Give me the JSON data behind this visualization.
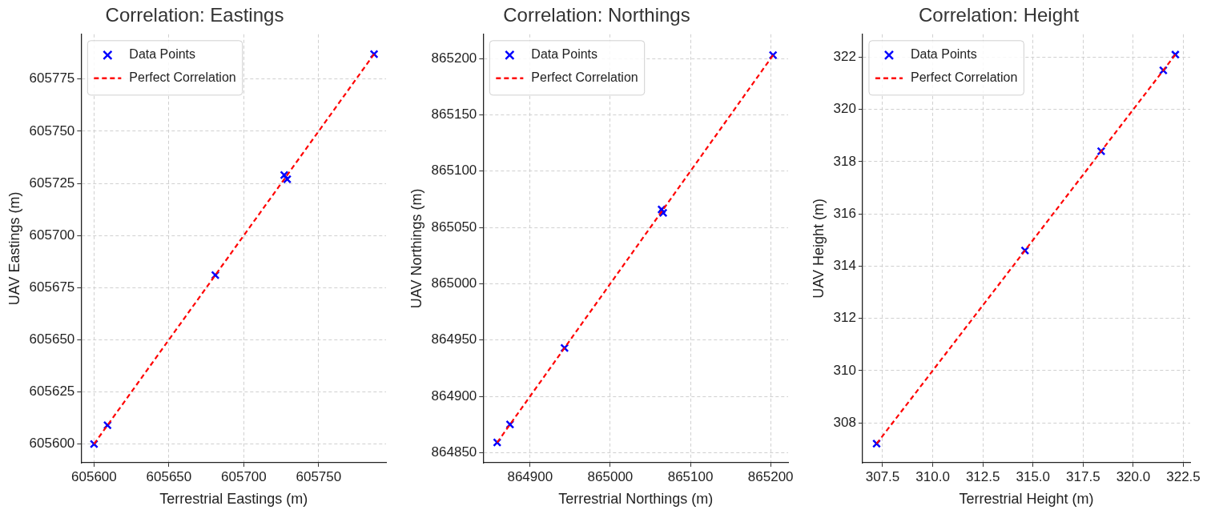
{
  "chart_data": [
    {
      "type": "scatter",
      "title": "Correlation: Eastings",
      "xlabel": "Terrestrial Eastings (m)",
      "ylabel": "UAV Eastings (m)",
      "xlim": [
        605591.4,
        605795
      ],
      "ylim": [
        605591,
        605796.5
      ],
      "xticks": [
        605600,
        605650,
        605700,
        605750
      ],
      "yticks": [
        605600,
        605625,
        605650,
        605675,
        605700,
        605725,
        605750,
        605775
      ],
      "grid": true,
      "legend": "top left",
      "series": [
        {
          "name": "Data Points",
          "type": "scatter",
          "marker": "cross",
          "color": "#0000ff",
          "x": [
            605600,
            605609,
            605681,
            605727,
            605729,
            605787
          ],
          "values": [
            605600,
            605609,
            605681,
            605729,
            605727,
            605787
          ]
        },
        {
          "name": "Perfect Correlation",
          "type": "line",
          "line_style": "dashed",
          "color": "#ff0000",
          "x": [
            605600,
            605787
          ],
          "values": [
            605600,
            605787
          ]
        }
      ]
    },
    {
      "type": "scatter",
      "title": "Correlation: Northings",
      "xlabel": "Terrestrial Northings (m)",
      "ylabel": "UAV Northings (m)",
      "xlim": [
        864841.6,
        865221.8
      ],
      "ylim": [
        864841,
        865221.6
      ],
      "xticks": [
        864900,
        865000,
        865100,
        865200
      ],
      "yticks": [
        864850,
        864900,
        864950,
        865000,
        865050,
        865100,
        865150,
        865200
      ],
      "grid": true,
      "legend": "top left",
      "series": [
        {
          "name": "Data Points",
          "type": "scatter",
          "marker": "cross",
          "color": "#0000ff",
          "x": [
            864859,
            864875,
            864943,
            865064,
            865066,
            865203
          ],
          "values": [
            864859,
            864875,
            864943,
            865066,
            865063,
            865203
          ]
        },
        {
          "name": "Perfect Correlation",
          "type": "line",
          "line_style": "dashed",
          "color": "#ff0000",
          "x": [
            864859,
            865203
          ],
          "values": [
            864859,
            865203
          ]
        }
      ]
    },
    {
      "type": "scatter",
      "title": "Correlation: Height",
      "xlabel": "Terrestrial Height (m)",
      "ylabel": "UAV Height (m)",
      "xlim": [
        306.5,
        322.84
      ],
      "ylim": [
        306.47,
        322.88
      ],
      "xticks": [
        307.5,
        {
          "value": 310,
          "label": "310.0"
        },
        312.5,
        {
          "value": 315,
          "label": "315.0"
        },
        317.5,
        {
          "value": 320,
          "label": "320.0"
        },
        322.5
      ],
      "yticks": [
        308,
        310,
        312,
        314,
        316,
        318,
        320,
        322
      ],
      "grid": true,
      "legend": "top left",
      "series": [
        {
          "name": "Data Points",
          "type": "scatter",
          "marker": "cross",
          "color": "#0000ff",
          "x": [
            307.2,
            314.6,
            318.4,
            321.5,
            322.1
          ],
          "values": [
            307.2,
            314.6,
            318.4,
            321.5,
            322.1
          ]
        },
        {
          "name": "Perfect Correlation",
          "type": "line",
          "line_style": "dashed",
          "color": "#ff0000",
          "x": [
            307.2,
            322.1
          ],
          "values": [
            307.2,
            322.1
          ]
        }
      ]
    }
  ]
}
